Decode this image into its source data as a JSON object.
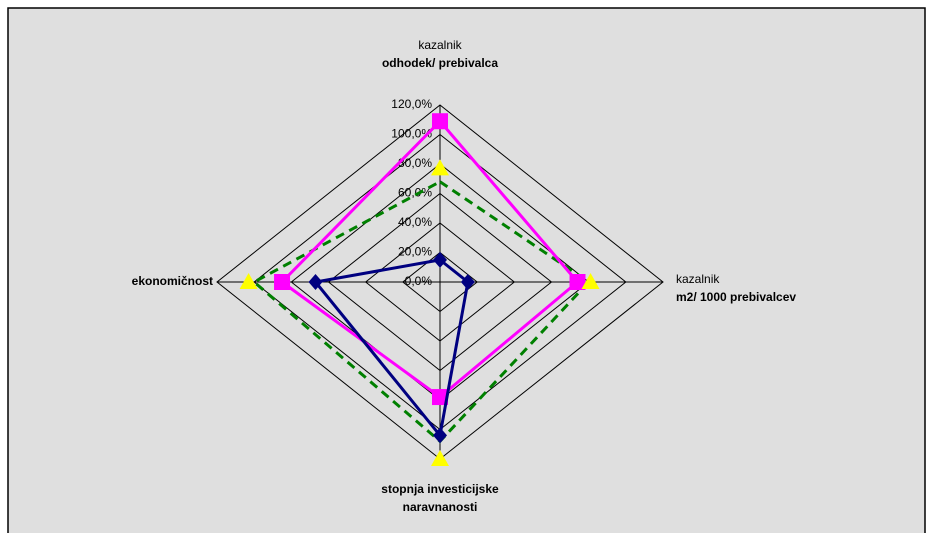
{
  "chart_data": {
    "type": "radar",
    "categories": [
      [
        "kazalnik",
        "odhodek/ prebivalca"
      ],
      [
        "kazalnik",
        "m2/ 1000 prebivalcev"
      ],
      [
        "stopnja investicijske",
        "naravnanosti"
      ],
      [
        "ekonomičnost"
      ]
    ],
    "ylim": [
      0,
      120
    ],
    "yticks": [
      {
        "value": 0,
        "label": "0,0%"
      },
      {
        "value": 20,
        "label": "20,0%"
      },
      {
        "value": 40,
        "label": "40,0%"
      },
      {
        "value": 60,
        "label": "60,0%"
      },
      {
        "value": 80,
        "label": "80,0%"
      },
      {
        "value": 100,
        "label": "100,0%"
      },
      {
        "value": 120,
        "label": "120,0%"
      }
    ],
    "grid": true,
    "series": [
      {
        "color": "#008000",
        "marker": "none",
        "dash": true,
        "values": [
          68,
          80,
          108,
          100
        ]
      },
      {
        "color": "#ff00ff",
        "marker": "square",
        "values": [
          109,
          74,
          78,
          85
        ]
      },
      {
        "color": "#ffff00",
        "marker": "triangle",
        "line": false,
        "values": [
          77,
          81,
          120,
          103
        ]
      },
      {
        "color": "#000080",
        "marker": "diamond",
        "values": [
          15,
          15,
          104,
          67
        ]
      }
    ]
  }
}
